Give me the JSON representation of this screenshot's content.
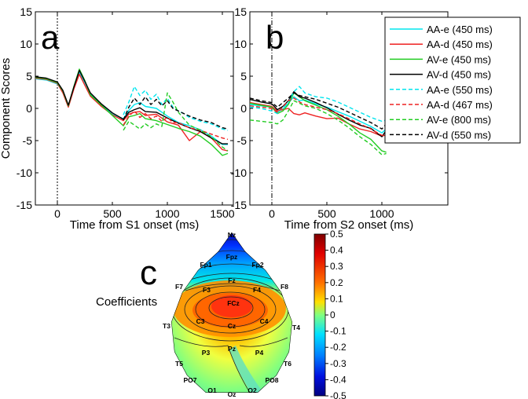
{
  "panels": {
    "a": {
      "letter": "a",
      "xlabel": "Time from S1 onset (ms)"
    },
    "b": {
      "letter": "b",
      "xlabel": "Time from S2 onset (ms)"
    },
    "c": {
      "letter": "c",
      "side_label": "Coefficients"
    }
  },
  "ylabel": "Component Scores",
  "legend": [
    {
      "label": "AA-e (450 ms)",
      "color": "#00e5ee",
      "dash": "solid"
    },
    {
      "label": "AA-d (450 ms)",
      "color": "#ee2222",
      "dash": "solid"
    },
    {
      "label": "AV-e (450 ms)",
      "color": "#22cc22",
      "dash": "solid"
    },
    {
      "label": "AV-d (450 ms)",
      "color": "#000000",
      "dash": "solid"
    },
    {
      "label": "AA-e (550 ms)",
      "color": "#00e5ee",
      "dash": "dashed"
    },
    {
      "label": "AA-d (467 ms)",
      "color": "#ee2222",
      "dash": "dashed"
    },
    {
      "label": "AV-e (800 ms)",
      "color": "#22cc22",
      "dash": "dashed"
    },
    {
      "label": "AV-d (550 ms)",
      "color": "#000000",
      "dash": "dashed"
    }
  ],
  "chart_data": [
    {
      "type": "line",
      "title": "a",
      "xlabel": "Time from S1 onset (ms)",
      "ylabel": "Component Scores",
      "xlim": [
        -200,
        1600
      ],
      "ylim": [
        -15,
        15
      ],
      "xticks": [
        0,
        500,
        1000,
        1500
      ],
      "yticks": [
        -15,
        -10,
        -5,
        0,
        5,
        10,
        15
      ],
      "vline": {
        "x": 0,
        "style": "dotted"
      },
      "series": [
        {
          "name": "AA-e (450 ms)",
          "color": "#00e5ee",
          "dash": "solid",
          "x": [
            -200,
            -100,
            0,
            50,
            100,
            150,
            200,
            250,
            300,
            400,
            500,
            600,
            650,
            700,
            750,
            800,
            900,
            1000,
            1100,
            1200,
            1300,
            1400,
            1500,
            1550
          ],
          "y": [
            4.6,
            4.4,
            3.8,
            2.6,
            0.3,
            3.2,
            5.6,
            4.0,
            2.2,
            0.6,
            -0.9,
            -1.6,
            -0.3,
            0.6,
            0.9,
            0.3,
            0.0,
            -1.2,
            -2.2,
            -2.7,
            -3.3,
            -4.3,
            -5.6,
            -5.6
          ]
        },
        {
          "name": "AA-d (450 ms)",
          "color": "#ee2222",
          "dash": "solid",
          "x": [
            -200,
            -100,
            0,
            50,
            100,
            150,
            200,
            250,
            300,
            400,
            500,
            600,
            650,
            700,
            750,
            800,
            900,
            1000,
            1100,
            1200,
            1300,
            1400,
            1500,
            1550
          ],
          "y": [
            4.7,
            4.5,
            3.9,
            2.4,
            0.2,
            3.0,
            5.3,
            3.6,
            1.9,
            0.3,
            -1.0,
            -1.9,
            -0.9,
            -0.6,
            -0.5,
            -1.1,
            -0.9,
            -2.1,
            -2.6,
            -5.0,
            -3.6,
            -4.6,
            -6.4,
            -6.6
          ]
        },
        {
          "name": "AV-e (450 ms)",
          "color": "#22cc22",
          "dash": "solid",
          "x": [
            -200,
            -100,
            0,
            50,
            100,
            150,
            200,
            250,
            300,
            400,
            500,
            600,
            650,
            700,
            750,
            800,
            900,
            1000,
            1100,
            1200,
            1300,
            1400,
            1500,
            1550
          ],
          "y": [
            4.8,
            4.6,
            4.0,
            2.7,
            0.4,
            3.4,
            6.1,
            4.3,
            2.1,
            0.5,
            -1.1,
            -2.7,
            -1.3,
            -1.1,
            -0.8,
            -1.6,
            -1.9,
            -2.5,
            -3.1,
            -3.6,
            -4.3,
            -5.6,
            -7.3,
            -7.0
          ]
        },
        {
          "name": "AV-d (450 ms)",
          "color": "#000000",
          "dash": "solid",
          "x": [
            -200,
            -100,
            0,
            50,
            100,
            150,
            200,
            250,
            300,
            400,
            500,
            600,
            650,
            700,
            750,
            800,
            900,
            1000,
            1100,
            1200,
            1300,
            1400,
            1500,
            1550
          ],
          "y": [
            4.9,
            4.7,
            4.1,
            2.8,
            0.5,
            3.3,
            5.9,
            4.2,
            2.4,
            0.7,
            -0.7,
            -1.7,
            -0.6,
            -0.2,
            0.1,
            -0.5,
            -0.6,
            -1.5,
            -2.3,
            -3.0,
            -3.6,
            -4.6,
            -5.5,
            -5.5
          ]
        },
        {
          "name": "AA-e (550 ms)",
          "color": "#00e5ee",
          "dash": "dashed",
          "x": [
            600,
            650,
            700,
            750,
            800,
            850,
            900,
            950,
            1000,
            1050,
            1100,
            1150,
            1200,
            1300,
            1400,
            1500,
            1550
          ],
          "y": [
            -1.0,
            1.0,
            3.4,
            2.0,
            2.8,
            1.4,
            2.2,
            0.6,
            1.6,
            0.2,
            -0.4,
            -0.8,
            -1.4,
            -2.0,
            -2.4,
            -3.2,
            -3.4
          ]
        },
        {
          "name": "AA-d (467 ms)",
          "color": "#ee2222",
          "dash": "dashed",
          "x": [
            600,
            650,
            700,
            750,
            800,
            850,
            900,
            950,
            1000,
            1050,
            1100,
            1150,
            1200,
            1300,
            1400,
            1500,
            1550
          ],
          "y": [
            -2.6,
            -1.2,
            -0.4,
            -1.4,
            -0.8,
            -1.6,
            -1.2,
            -2.0,
            -1.4,
            -2.2,
            -2.2,
            -2.6,
            -3.0,
            -3.4,
            -4.0,
            -4.6,
            -4.8
          ]
        },
        {
          "name": "AV-e (800 ms)",
          "color": "#22cc22",
          "dash": "dashed",
          "x": [
            600,
            650,
            700,
            750,
            800,
            850,
            900,
            950,
            1000,
            1050,
            1100,
            1150,
            1200,
            1300,
            1400,
            1500,
            1550
          ],
          "y": [
            -3.4,
            -2.0,
            -2.6,
            -3.2,
            -2.4,
            -3.0,
            -2.4,
            -2.8,
            2.4,
            1.0,
            -0.6,
            -1.6,
            -2.6,
            -3.4,
            -4.4,
            -6.0,
            -6.6
          ]
        },
        {
          "name": "AV-d (550 ms)",
          "color": "#000000",
          "dash": "dashed",
          "x": [
            600,
            650,
            700,
            750,
            800,
            850,
            900,
            950,
            1000,
            1050,
            1100,
            1150,
            1200,
            1300,
            1400,
            1500,
            1550
          ],
          "y": [
            -1.8,
            0.2,
            1.6,
            0.6,
            1.8,
            0.6,
            1.4,
            0.4,
            1.2,
            0.0,
            -0.4,
            -0.8,
            -1.2,
            -1.8,
            -2.2,
            -3.0,
            -3.2
          ]
        }
      ]
    },
    {
      "type": "line",
      "title": "b",
      "xlabel": "Time from S2 onset (ms)",
      "ylabel": "",
      "xlim": [
        -200,
        1600
      ],
      "ylim": [
        -15,
        15
      ],
      "xticks": [
        0,
        500,
        1000
      ],
      "yticks": [
        -15,
        -10,
        -5,
        0,
        5,
        10,
        15
      ],
      "vline": {
        "x": 0,
        "style": "dashdot"
      },
      "series": [
        {
          "name": "AA-e (450 ms)",
          "color": "#00e5ee",
          "dash": "solid",
          "x": [
            -200,
            -100,
            0,
            50,
            100,
            150,
            200,
            250,
            300,
            400,
            500,
            600,
            700,
            800,
            900,
            1000,
            1040
          ],
          "y": [
            0.6,
            0.4,
            0.2,
            -0.6,
            -0.1,
            0.8,
            1.8,
            1.2,
            1.3,
            0.7,
            0.2,
            -0.5,
            -1.2,
            -2.0,
            -2.8,
            -3.8,
            -3.2
          ]
        },
        {
          "name": "AA-d (450 ms)",
          "color": "#ee2222",
          "dash": "solid",
          "x": [
            -200,
            -100,
            0,
            50,
            100,
            150,
            200,
            250,
            300,
            400,
            500,
            600,
            700,
            800,
            900,
            1000,
            1040
          ],
          "y": [
            0.9,
            0.6,
            0.3,
            -0.4,
            -0.2,
            0.0,
            -0.8,
            -1.0,
            -0.7,
            -1.2,
            -1.6,
            -1.5,
            -2.4,
            -3.2,
            -3.6,
            -4.3,
            -4.1
          ]
        },
        {
          "name": "AV-e (450 ms)",
          "color": "#22cc22",
          "dash": "solid",
          "x": [
            -200,
            -100,
            0,
            50,
            100,
            150,
            200,
            250,
            300,
            400,
            500,
            600,
            700,
            800,
            900,
            1000,
            1040
          ],
          "y": [
            0.8,
            0.5,
            0.2,
            -0.8,
            -0.4,
            0.6,
            2.4,
            1.8,
            1.2,
            0.5,
            -0.2,
            -1.2,
            -2.4,
            -3.8,
            -4.8,
            -6.6,
            -6.8
          ]
        },
        {
          "name": "AV-d (450 ms)",
          "color": "#000000",
          "dash": "solid",
          "x": [
            -200,
            -100,
            0,
            50,
            100,
            150,
            200,
            250,
            300,
            400,
            500,
            600,
            700,
            800,
            900,
            1000,
            1040
          ],
          "y": [
            1.4,
            1.0,
            0.7,
            -0.2,
            0.3,
            1.2,
            2.6,
            1.8,
            1.6,
            0.9,
            0.1,
            -0.9,
            -1.8,
            -2.6,
            -3.1,
            -4.4,
            -3.4
          ]
        },
        {
          "name": "AA-e (550 ms)",
          "color": "#00e5ee",
          "dash": "dashed",
          "x": [
            -200,
            -100,
            0,
            50,
            100,
            150,
            200,
            250,
            300,
            400,
            500,
            600,
            700,
            800,
            900,
            1000,
            1040
          ],
          "y": [
            0.2,
            0.0,
            -0.4,
            -0.8,
            0.2,
            1.0,
            2.6,
            3.4,
            2.4,
            1.8,
            1.6,
            1.0,
            0.2,
            -0.6,
            -1.4,
            -2.0,
            -1.8
          ]
        },
        {
          "name": "AA-d (467 ms)",
          "color": "#ee2222",
          "dash": "dashed",
          "x": [
            -200,
            -100,
            0,
            50,
            100,
            150,
            200,
            250,
            300,
            400,
            500,
            600,
            700,
            800,
            900,
            1000,
            1040
          ],
          "y": [
            0.4,
            0.2,
            0.0,
            -0.6,
            0.2,
            1.2,
            1.6,
            1.0,
            0.6,
            0.2,
            -0.2,
            -0.8,
            -1.6,
            -2.4,
            -3.2,
            -4.2,
            -4.0
          ]
        },
        {
          "name": "AV-e (800 ms)",
          "color": "#22cc22",
          "dash": "dashed",
          "x": [
            -200,
            -100,
            0,
            50,
            100,
            150,
            200,
            250,
            300,
            400,
            500,
            600,
            700,
            800,
            900,
            1000,
            1040
          ],
          "y": [
            -1.8,
            -2.0,
            -2.2,
            -2.4,
            -1.8,
            -0.4,
            1.2,
            0.8,
            0.4,
            0.0,
            -0.8,
            -1.8,
            -3.0,
            -4.4,
            -5.6,
            -7.2,
            -7.0
          ]
        },
        {
          "name": "AV-d (550 ms)",
          "color": "#000000",
          "dash": "dashed",
          "x": [
            -200,
            -100,
            0,
            50,
            100,
            150,
            200,
            250,
            300,
            400,
            500,
            600,
            700,
            800,
            900,
            1000,
            1040
          ],
          "y": [
            1.6,
            1.2,
            0.9,
            0.2,
            0.9,
            1.6,
            2.4,
            2.0,
            1.8,
            1.4,
            0.8,
            0.2,
            -0.6,
            -1.4,
            -2.2,
            -3.2,
            -2.4
          ]
        }
      ]
    },
    {
      "type": "heatmap",
      "title": "c",
      "colorbar": {
        "min": -0.5,
        "max": 0.5,
        "ticks": [
          "0.5",
          "0.4",
          "0.3",
          "0.2",
          "0.1",
          "0",
          "-0.1",
          "-0.2",
          "-0.3",
          "-0.4",
          "-0.5"
        ]
      },
      "electrodes": [
        "Nz",
        "Fpz",
        "Fp1",
        "Fp2",
        "F7",
        "F3",
        "Fz",
        "F4",
        "F8",
        "T3",
        "C3",
        "Cz",
        "FCz",
        "C4",
        "T4",
        "T5",
        "P3",
        "Pz",
        "P4",
        "T6",
        "PO7",
        "PO8",
        "O1",
        "O2",
        "Oz"
      ]
    }
  ]
}
